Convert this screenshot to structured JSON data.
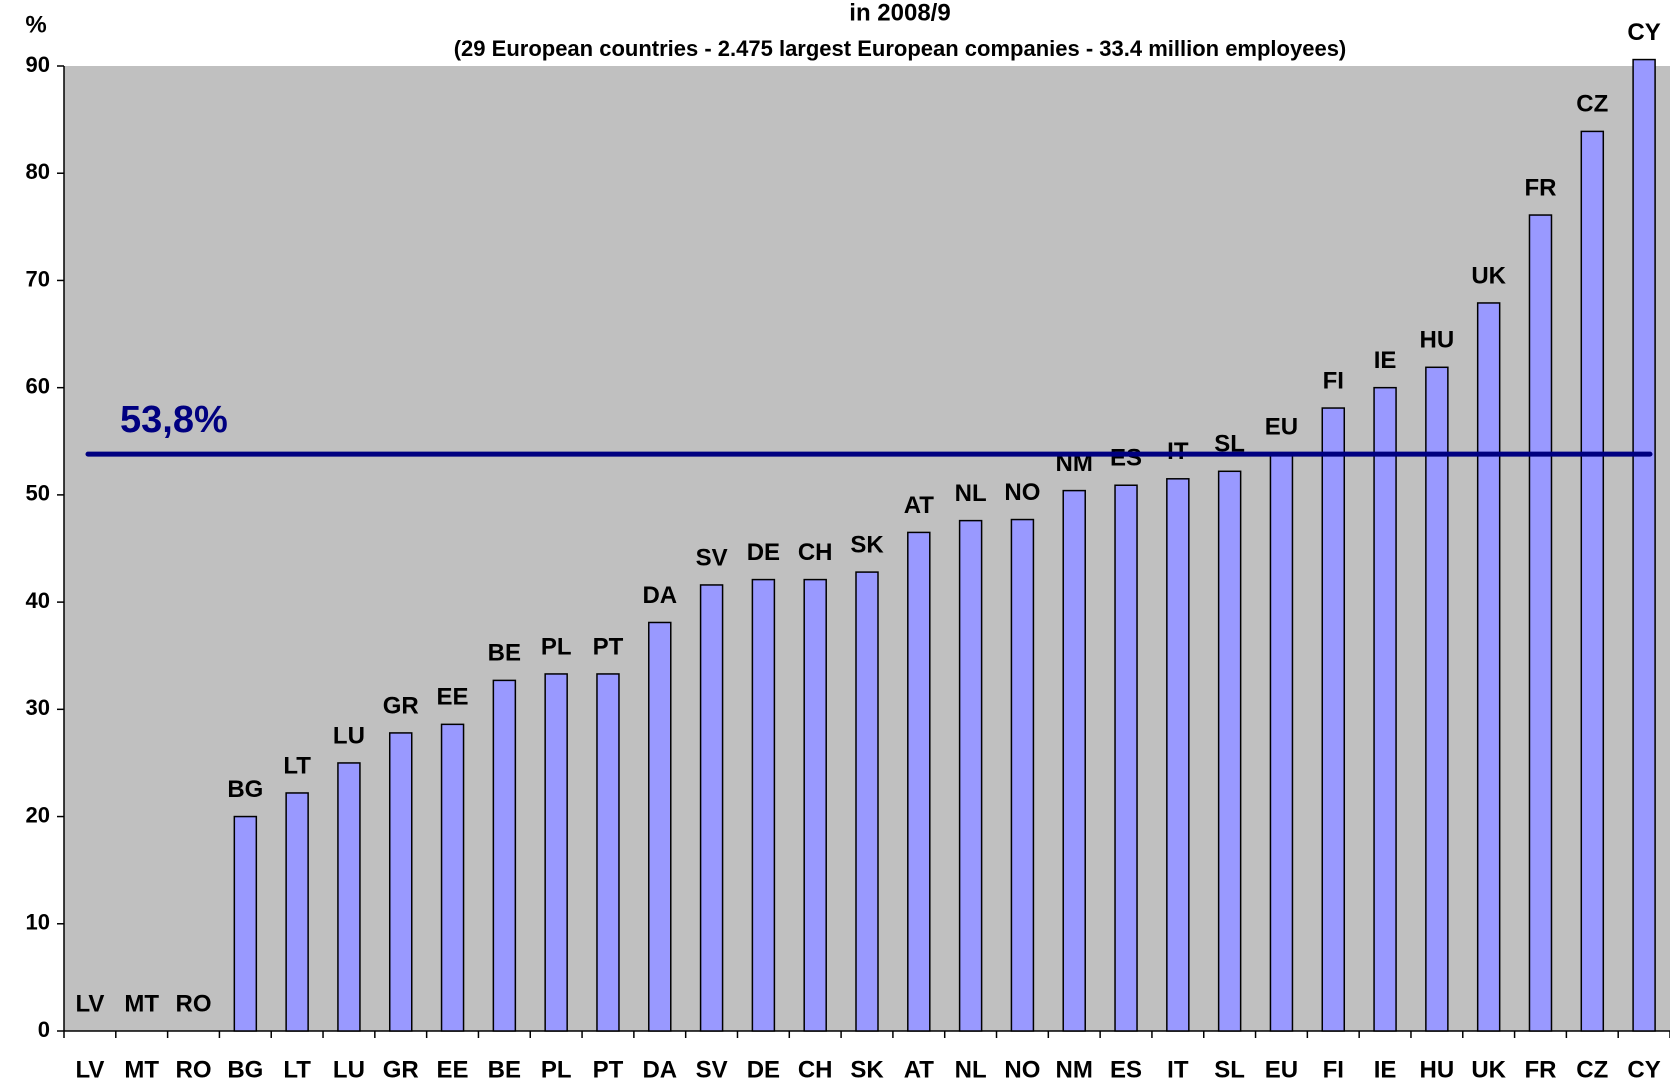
{
  "chart_data": {
    "type": "bar",
    "title": "in 2008/9",
    "subtitle": "(29 European countries - 2.475 largest European companies - 33.4 million employees)",
    "y_label": "%",
    "categories": [
      "LV",
      "MT",
      "RO",
      "BG",
      "LT",
      "LU",
      "GR",
      "EE",
      "BE",
      "PL",
      "PT",
      "DA",
      "SV",
      "DE",
      "CH",
      "SK",
      "AT",
      "NL",
      "NO",
      "NM",
      "ES",
      "IT",
      "SL",
      "EU",
      "FI",
      "IE",
      "HU",
      "UK",
      "FR",
      "CZ",
      "CY"
    ],
    "values": [
      0,
      0,
      0,
      20,
      22.2,
      25,
      27.8,
      28.6,
      32.7,
      33.3,
      33.3,
      38.1,
      41.6,
      42.1,
      42.1,
      42.8,
      46.5,
      47.6,
      47.7,
      50.4,
      50.9,
      51.5,
      52.2,
      53.8,
      58.1,
      60,
      61.9,
      67.9,
      76.1,
      83.9,
      90.6
    ],
    "color": "#9999ff",
    "ylim": [
      0,
      90
    ],
    "yticks": [
      0,
      10,
      20,
      30,
      40,
      50,
      60,
      70,
      80,
      90
    ],
    "grid": false,
    "reference_line": {
      "value": 53.8,
      "label": "53,8%",
      "color": "#000080"
    }
  }
}
